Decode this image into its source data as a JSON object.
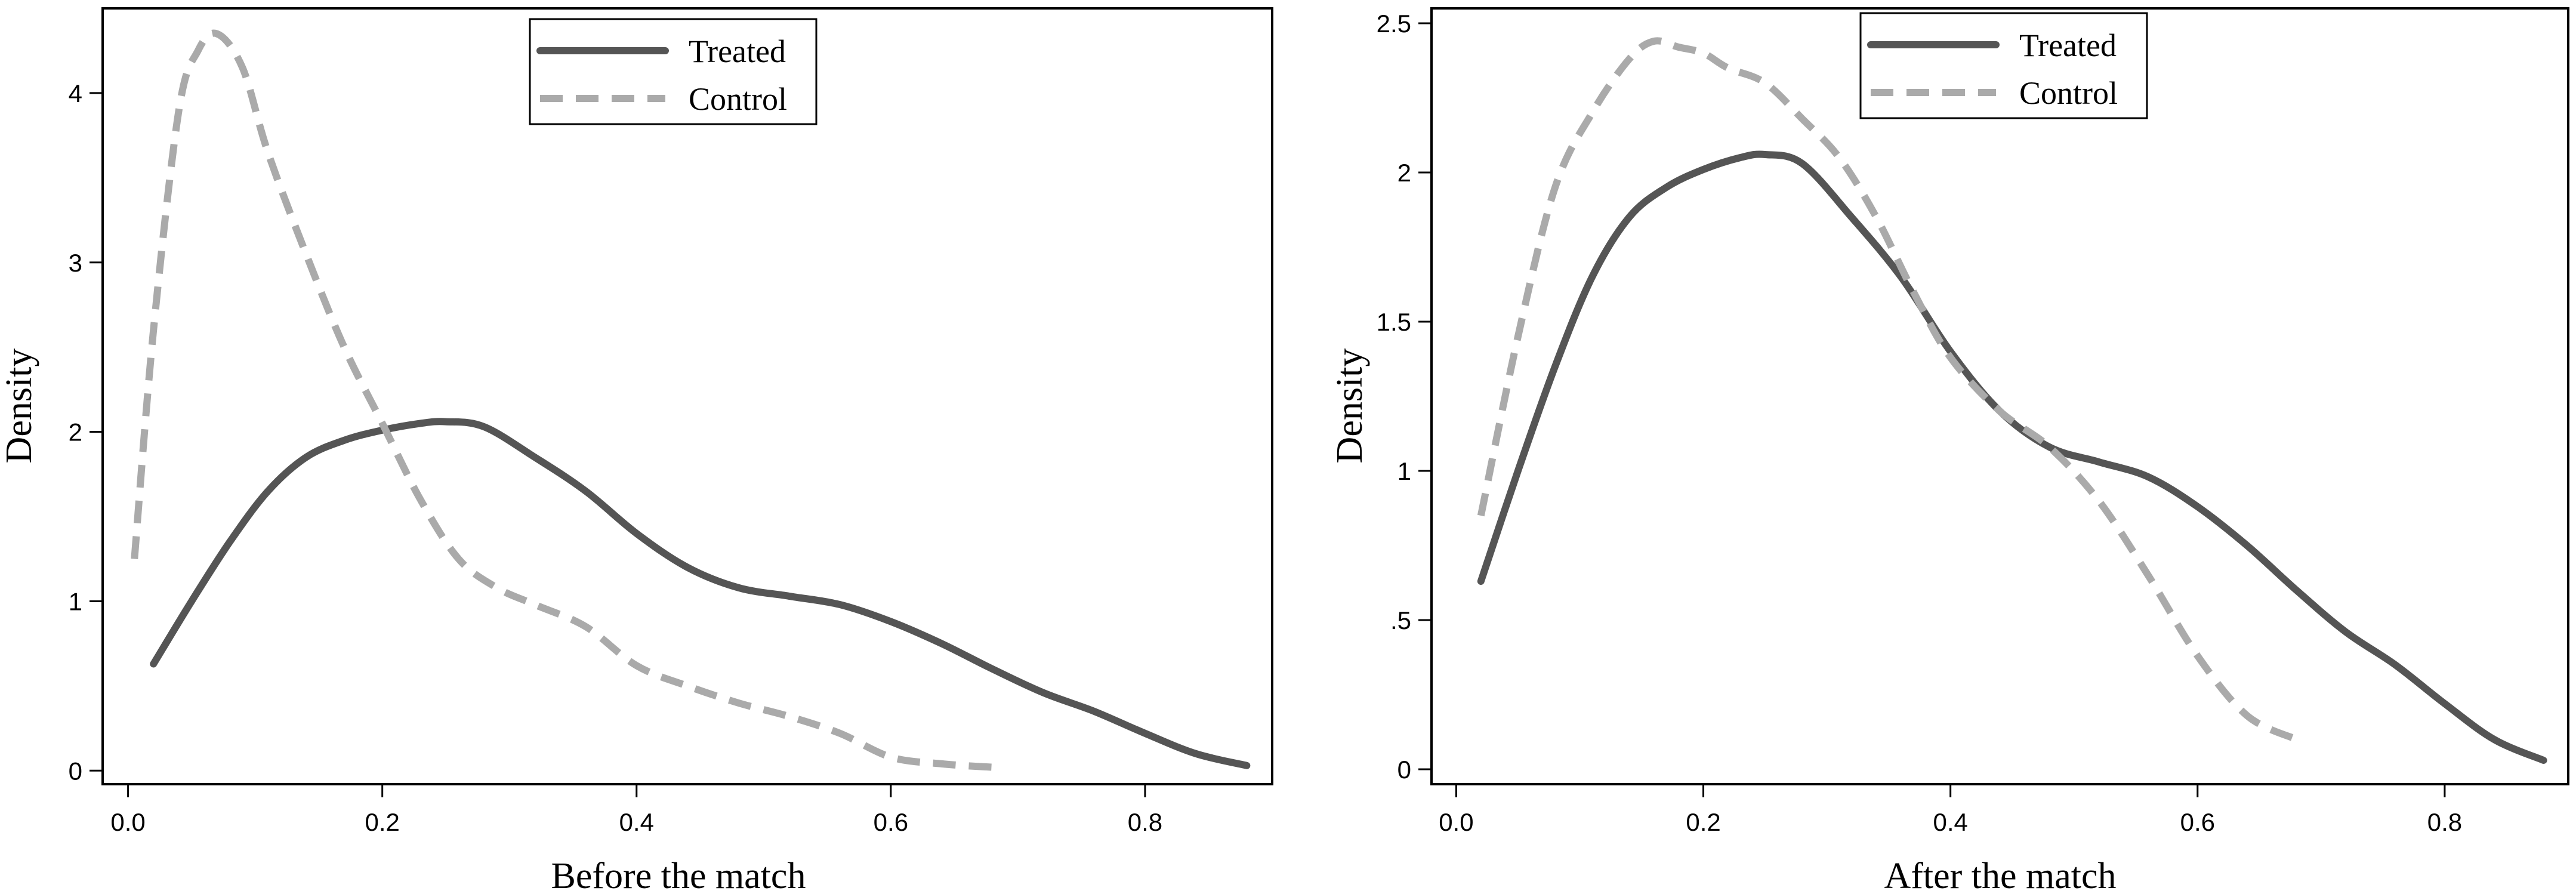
{
  "chart_data": [
    {
      "type": "line",
      "xlabel": "Before the match",
      "ylabel": "Density",
      "xlim": [
        -0.02,
        0.9
      ],
      "ylim": [
        -0.08,
        4.5
      ],
      "xticks": [
        0.0,
        0.2,
        0.4,
        0.6,
        0.8
      ],
      "xtick_labels": [
        "0.0",
        "0.2",
        "0.4",
        "0.6",
        "0.8"
      ],
      "yticks": [
        0,
        1,
        2,
        3,
        4
      ],
      "ytick_labels": [
        "0",
        "1",
        "2",
        "3",
        "4"
      ],
      "grid": false,
      "legend_position": "top-center",
      "series": [
        {
          "name": "Treated",
          "style": "solid",
          "color": "#555555",
          "x": [
            0.02,
            0.05,
            0.08,
            0.11,
            0.14,
            0.17,
            0.2,
            0.23,
            0.25,
            0.28,
            0.32,
            0.36,
            0.4,
            0.44,
            0.48,
            0.52,
            0.56,
            0.6,
            0.64,
            0.68,
            0.72,
            0.76,
            0.8,
            0.84,
            0.88
          ],
          "y": [
            0.63,
            1.0,
            1.35,
            1.65,
            1.85,
            1.95,
            2.01,
            2.05,
            2.06,
            2.03,
            1.85,
            1.65,
            1.4,
            1.2,
            1.08,
            1.03,
            0.98,
            0.88,
            0.75,
            0.6,
            0.46,
            0.35,
            0.22,
            0.1,
            0.03
          ]
        },
        {
          "name": "Control",
          "style": "dashed",
          "color": "#aaaaaa",
          "x": [
            0.005,
            0.02,
            0.04,
            0.055,
            0.07,
            0.09,
            0.11,
            0.14,
            0.17,
            0.2,
            0.23,
            0.26,
            0.29,
            0.32,
            0.36,
            0.4,
            0.44,
            0.48,
            0.52,
            0.56,
            0.6,
            0.64,
            0.68
          ],
          "y": [
            1.25,
            2.6,
            3.9,
            4.25,
            4.35,
            4.15,
            3.65,
            3.05,
            2.5,
            2.05,
            1.6,
            1.25,
            1.08,
            0.98,
            0.85,
            0.62,
            0.5,
            0.4,
            0.32,
            0.22,
            0.08,
            0.04,
            0.02
          ]
        }
      ]
    },
    {
      "type": "line",
      "xlabel": "After the match",
      "ylabel": "Density",
      "xlim": [
        -0.02,
        0.9
      ],
      "ylim": [
        -0.05,
        2.55
      ],
      "xticks": [
        0.0,
        0.2,
        0.4,
        0.6,
        0.8
      ],
      "xtick_labels": [
        "0.0",
        "0.2",
        "0.4",
        "0.6",
        "0.8"
      ],
      "yticks": [
        0,
        0.5,
        1,
        1.5,
        2,
        2.5
      ],
      "ytick_labels": [
        "0",
        ".5",
        "1",
        "1.5",
        "2",
        "2.5"
      ],
      "grid": false,
      "legend_position": "top-center",
      "series": [
        {
          "name": "Treated",
          "style": "solid",
          "color": "#555555",
          "x": [
            0.02,
            0.05,
            0.08,
            0.11,
            0.14,
            0.17,
            0.2,
            0.23,
            0.25,
            0.28,
            0.32,
            0.36,
            0.4,
            0.44,
            0.48,
            0.52,
            0.56,
            0.6,
            0.64,
            0.68,
            0.72,
            0.76,
            0.8,
            0.84,
            0.88
          ],
          "y": [
            0.63,
            1.0,
            1.35,
            1.65,
            1.85,
            1.95,
            2.01,
            2.05,
            2.06,
            2.03,
            1.85,
            1.65,
            1.4,
            1.2,
            1.08,
            1.03,
            0.98,
            0.88,
            0.75,
            0.6,
            0.46,
            0.35,
            0.22,
            0.1,
            0.03
          ]
        },
        {
          "name": "Control",
          "style": "dashed",
          "color": "#aaaaaa",
          "x": [
            0.02,
            0.05,
            0.08,
            0.11,
            0.14,
            0.16,
            0.18,
            0.2,
            0.22,
            0.25,
            0.28,
            0.31,
            0.34,
            0.37,
            0.4,
            0.44,
            0.48,
            0.52,
            0.56,
            0.6,
            0.64,
            0.68
          ],
          "y": [
            0.85,
            1.45,
            1.95,
            2.2,
            2.38,
            2.44,
            2.42,
            2.4,
            2.35,
            2.3,
            2.18,
            2.05,
            1.85,
            1.6,
            1.38,
            1.2,
            1.08,
            0.9,
            0.65,
            0.38,
            0.18,
            0.1
          ]
        }
      ]
    }
  ]
}
